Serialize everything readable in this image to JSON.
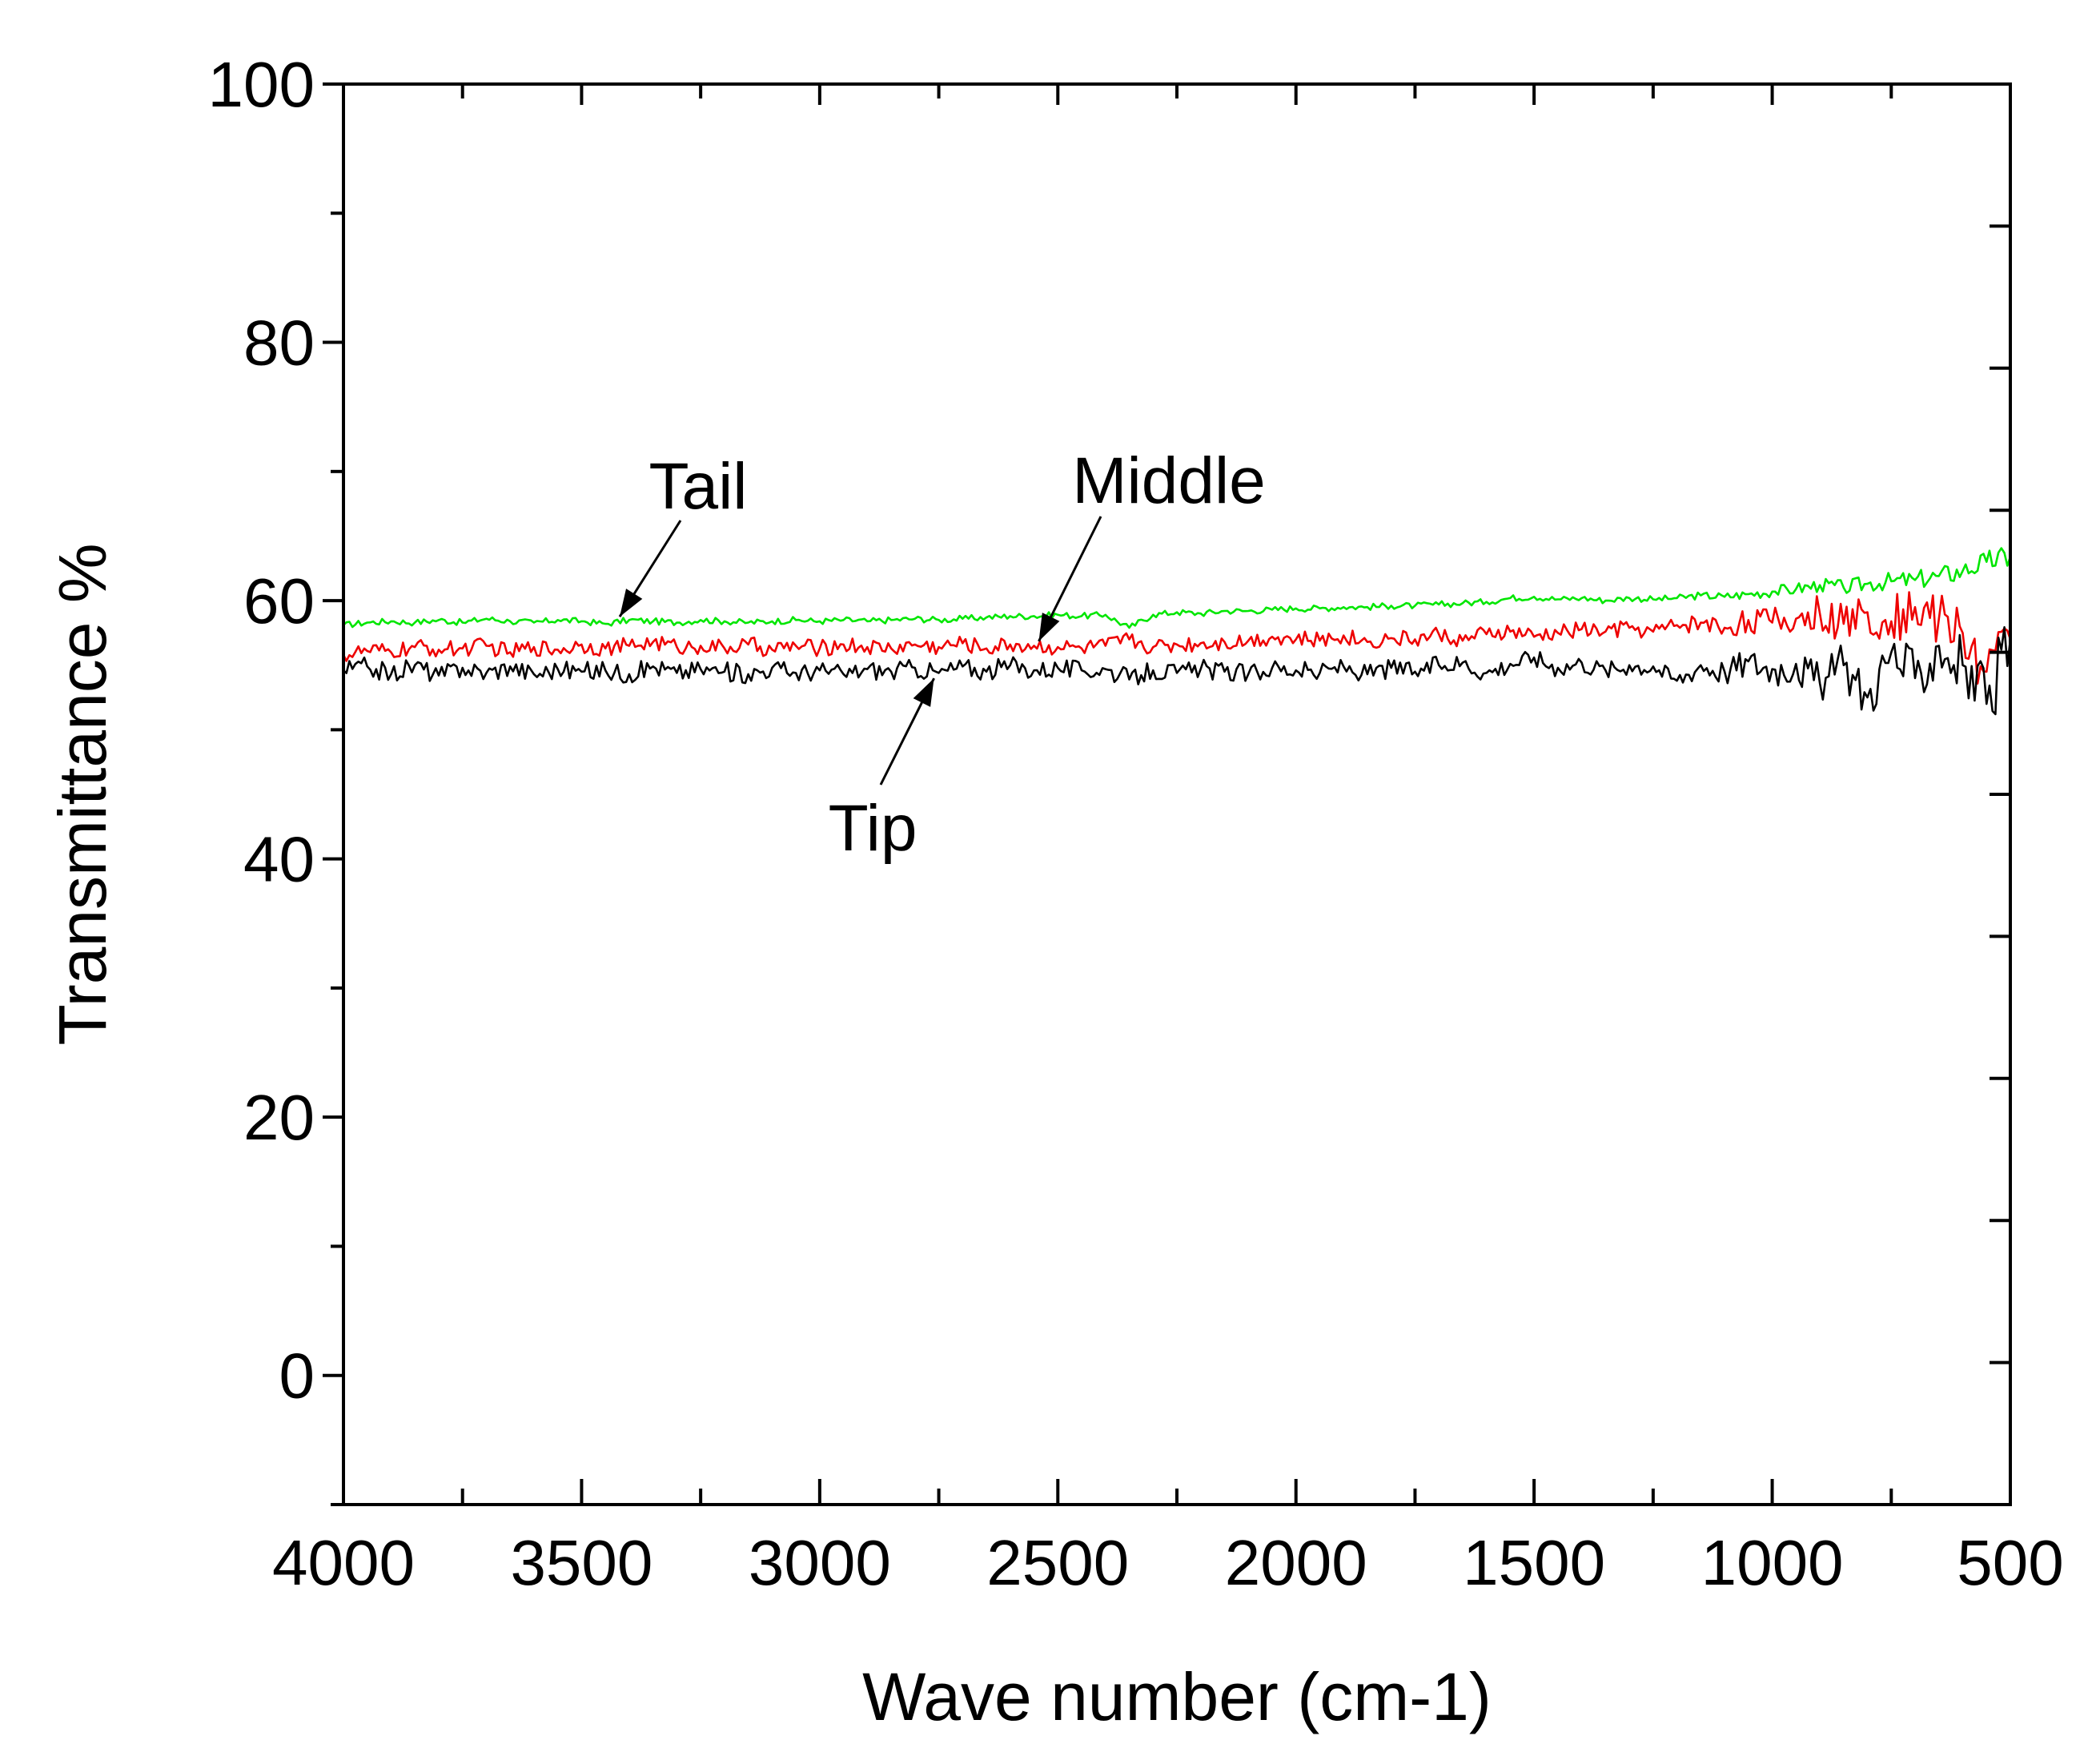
{
  "chart_data": {
    "type": "line",
    "title": "",
    "xlabel": "Wave number (cm-1)",
    "ylabel": "Transmittance %",
    "xlim": [
      4000,
      500
    ],
    "ylim": [
      -10,
      100
    ],
    "x_ticks": [
      4000,
      3500,
      3000,
      2500,
      2000,
      1500,
      1000,
      500
    ],
    "x_tick_labels": [
      "4000",
      "3500",
      "3000",
      "2500",
      "2000",
      "1500",
      "1000",
      "500"
    ],
    "y_ticks": [
      0,
      20,
      40,
      60,
      80,
      100
    ],
    "y_tick_labels": [
      "0",
      "20",
      "40",
      "60",
      "80",
      "100"
    ],
    "grid": false,
    "x_step": 50,
    "series": [
      {
        "name": "Tail",
        "color": "#00e600",
        "x": [
          4000,
          3950,
          3900,
          3850,
          3800,
          3750,
          3700,
          3650,
          3600,
          3550,
          3500,
          3450,
          3400,
          3350,
          3300,
          3250,
          3200,
          3150,
          3100,
          3050,
          3000,
          2950,
          2900,
          2850,
          2800,
          2750,
          2700,
          2650,
          2600,
          2550,
          2500,
          2450,
          2400,
          2350,
          2300,
          2250,
          2200,
          2150,
          2100,
          2050,
          2000,
          1950,
          1900,
          1850,
          1800,
          1750,
          1700,
          1650,
          1600,
          1550,
          1500,
          1450,
          1400,
          1350,
          1300,
          1250,
          1200,
          1150,
          1100,
          1050,
          1000,
          950,
          900,
          850,
          800,
          750,
          700,
          650,
          600,
          550,
          500
        ],
        "values": [
          58.1,
          58.3,
          58.4,
          58.3,
          58.5,
          58.3,
          58.6,
          58.4,
          58.3,
          58.5,
          58.4,
          58.2,
          58.5,
          58.4,
          58.3,
          58.5,
          58.4,
          58.3,
          58.4,
          58.5,
          58.4,
          58.5,
          58.4,
          58.5,
          58.6,
          58.5,
          58.6,
          58.7,
          58.8,
          58.8,
          58.9,
          58.8,
          58.9,
          57.9,
          58.9,
          59.1,
          59.0,
          59.2,
          59.2,
          59.3,
          59.4,
          59.4,
          59.5,
          59.5,
          59.6,
          59.6,
          59.7,
          59.8,
          59.9,
          60.2,
          60.3,
          60.1,
          60.2,
          60.0,
          60.2,
          60.1,
          60.2,
          60.4,
          60.3,
          60.5,
          60.7,
          60.9,
          61.2,
          61.0,
          61.3,
          61.5,
          61.6,
          61.9,
          62.3,
          63.0,
          63.4
        ]
      },
      {
        "name": "Middle",
        "color": "#ee0000",
        "x": [
          4000,
          3950,
          3900,
          3850,
          3800,
          3750,
          3700,
          3650,
          3600,
          3550,
          3500,
          3450,
          3400,
          3350,
          3300,
          3250,
          3200,
          3150,
          3100,
          3050,
          3000,
          2950,
          2900,
          2850,
          2800,
          2750,
          2700,
          2650,
          2600,
          2550,
          2500,
          2450,
          2400,
          2350,
          2300,
          2250,
          2200,
          2150,
          2100,
          2050,
          2000,
          1950,
          1900,
          1850,
          1800,
          1750,
          1700,
          1650,
          1600,
          1550,
          1500,
          1450,
          1400,
          1350,
          1300,
          1250,
          1200,
          1150,
          1100,
          1050,
          1000,
          950,
          900,
          850,
          800,
          750,
          700,
          650,
          600,
          550,
          500
        ],
        "values": [
          55.8,
          56.1,
          56.0,
          56.4,
          56.2,
          56.3,
          56.5,
          56.0,
          56.4,
          56.2,
          56.6,
          56.3,
          56.5,
          56.8,
          56.4,
          56.5,
          56.3,
          56.6,
          56.2,
          56.5,
          56.3,
          56.6,
          56.4,
          56.3,
          56.6,
          56.4,
          56.7,
          56.3,
          56.6,
          56.5,
          56.4,
          56.3,
          56.5,
          57.0,
          56.4,
          56.6,
          56.7,
          56.8,
          56.9,
          57.2,
          57.0,
          56.9,
          57.3,
          56.8,
          57.1,
          57.0,
          57.4,
          56.9,
          57.4,
          57.6,
          57.2,
          57.5,
          57.8,
          57.6,
          57.9,
          57.6,
          58.1,
          58.3,
          57.9,
          58.5,
          58.3,
          58.6,
          59.0,
          58.2,
          59.1,
          58.4,
          59.5,
          58.6,
          57.5,
          54.5,
          57.0
        ]
      },
      {
        "name": "Tip",
        "color": "#000000",
        "x": [
          4000,
          3950,
          3900,
          3850,
          3800,
          3750,
          3700,
          3650,
          3600,
          3550,
          3500,
          3450,
          3400,
          3350,
          3300,
          3250,
          3200,
          3150,
          3100,
          3050,
          3000,
          2950,
          2900,
          2850,
          2800,
          2750,
          2700,
          2650,
          2600,
          2550,
          2500,
          2450,
          2400,
          2350,
          2300,
          2250,
          2200,
          2150,
          2100,
          2050,
          2000,
          1950,
          1900,
          1850,
          1800,
          1750,
          1700,
          1650,
          1600,
          1550,
          1500,
          1450,
          1400,
          1350,
          1300,
          1250,
          1200,
          1150,
          1100,
          1050,
          1000,
          950,
          900,
          850,
          800,
          750,
          700,
          650,
          600,
          550,
          500
        ],
        "values": [
          54.6,
          54.9,
          54.3,
          55.0,
          54.2,
          54.8,
          54.4,
          54.9,
          54.3,
          54.7,
          54.5,
          54.6,
          54.3,
          54.9,
          54.4,
          54.7,
          54.5,
          54.3,
          54.8,
          54.4,
          54.6,
          54.3,
          54.7,
          54.5,
          54.8,
          54.4,
          54.9,
          54.5,
          55.0,
          54.6,
          54.8,
          54.6,
          54.7,
          53.9,
          54.6,
          54.4,
          54.7,
          54.5,
          54.3,
          54.8,
          54.6,
          54.4,
          54.9,
          54.3,
          54.8,
          54.5,
          55.0,
          55.2,
          54.4,
          55.1,
          55.6,
          54.8,
          55.2,
          54.6,
          55.0,
          54.9,
          53.8,
          55.0,
          54.5,
          55.3,
          54.7,
          55.1,
          53.6,
          55.0,
          52.5,
          56.0,
          54.0,
          56.5,
          55.0,
          52.0,
          57.0
        ]
      }
    ],
    "annotations": [
      {
        "text": "Tail",
        "points_to_series": "Tail",
        "at_x": 3420
      },
      {
        "text": "Middle",
        "points_to_series": "Middle",
        "at_x": 2540
      },
      {
        "text": "Tip",
        "points_to_series": "Tip",
        "at_x": 2760
      }
    ]
  }
}
